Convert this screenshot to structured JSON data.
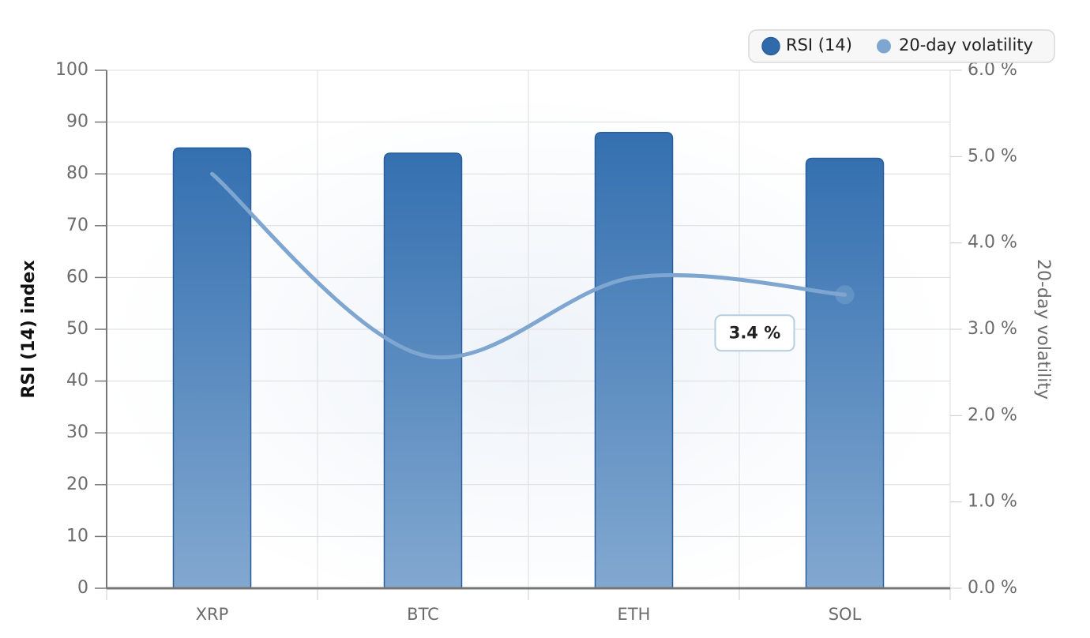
{
  "chart_data": {
    "type": "bar-line",
    "categories": [
      "XRP",
      "BTC",
      "ETH",
      "SOL"
    ],
    "series": [
      {
        "name": "RSI (14)",
        "type": "bar",
        "color": "#2f6aad",
        "values": [
          85,
          84,
          88,
          83
        ]
      },
      {
        "name": "20-day volatility",
        "type": "line",
        "axis": "y2",
        "color": "#7ea6d0",
        "values": [
          4.8,
          2.7,
          3.6,
          3.4
        ],
        "value_labels": [
          null,
          null,
          null,
          "3.4 %"
        ]
      }
    ],
    "ylabel": "RSI (14) index",
    "y2label": "20-day volatility",
    "ylim": [
      0,
      100
    ],
    "yticks": [
      0,
      10,
      20,
      30,
      40,
      50,
      60,
      70,
      80,
      90,
      100
    ],
    "y2lim": [
      0,
      6
    ],
    "y2ticks": [
      {
        "value": 0,
        "label": "0.0 %"
      },
      {
        "value": 1,
        "label": "1.0 %"
      },
      {
        "value": 2,
        "label": "2.0 %"
      },
      {
        "value": 3,
        "label": "3.0 %"
      },
      {
        "value": 4,
        "label": "4.0 %"
      },
      {
        "value": 5,
        "label": "5.0 %"
      },
      {
        "value": 6,
        "label": "6.0 %"
      }
    ],
    "grid": true,
    "legend": "top-right"
  }
}
